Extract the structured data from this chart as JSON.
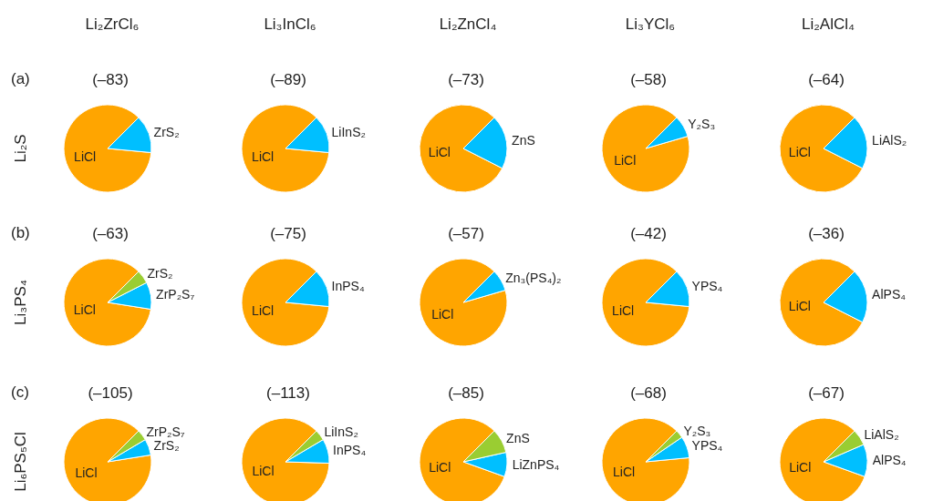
{
  "chart_data": [
    {
      "type": "pie",
      "title": "(–83)",
      "annotations": [
        "Li₂ZrCl₆",
        "(a)"
      ],
      "ylabel": "Li₂S",
      "categories": [
        "LiCl",
        "ZrS₂"
      ],
      "values": [
        86,
        14
      ],
      "colors": [
        "#ffa500",
        "#00bfff"
      ]
    },
    {
      "type": "pie",
      "title": "(–89)",
      "annotations": [
        "Li₃InCl₆"
      ],
      "categories": [
        "LiCl",
        "LiInS₂"
      ],
      "values": [
        86,
        14
      ],
      "colors": [
        "#ffa500",
        "#00bfff"
      ]
    },
    {
      "type": "pie",
      "title": "(–73)",
      "annotations": [
        "Li₂ZnCl₄"
      ],
      "categories": [
        "LiCl",
        "ZnS"
      ],
      "values": [
        80,
        20
      ],
      "colors": [
        "#ffa500",
        "#00bfff"
      ]
    },
    {
      "type": "pie",
      "title": "(–58)",
      "annotations": [
        "Li₃YCl₆"
      ],
      "categories": [
        "LiCl",
        "Y₂S₃"
      ],
      "values": [
        92,
        8
      ],
      "colors": [
        "#ffa500",
        "#00bfff"
      ]
    },
    {
      "type": "pie",
      "title": "(–64)",
      "annotations": [
        "Li₂AlCl₄"
      ],
      "categories": [
        "LiCl",
        "LiAlS₂"
      ],
      "values": [
        80,
        20
      ],
      "colors": [
        "#ffa500",
        "#00bfff"
      ]
    },
    {
      "type": "pie",
      "title": "(–63)",
      "annotations": [
        "(b)"
      ],
      "ylabel": "Li₃PS₄",
      "categories": [
        "LiCl",
        "ZrP₂S₇",
        "ZrS₂"
      ],
      "values": [
        85,
        10,
        5
      ],
      "colors": [
        "#ffa500",
        "#00bfff",
        "#9acd32"
      ]
    },
    {
      "type": "pie",
      "title": "(–75)",
      "categories": [
        "LiCl",
        "InPS₄"
      ],
      "values": [
        86,
        14
      ],
      "colors": [
        "#ffa500",
        "#00bfff"
      ]
    },
    {
      "type": "pie",
      "title": "(–57)",
      "categories": [
        "LiCl",
        "Zn₃(PS₄)₂"
      ],
      "values": [
        92,
        8
      ],
      "colors": [
        "#ffa500",
        "#00bfff"
      ]
    },
    {
      "type": "pie",
      "title": "(–42)",
      "categories": [
        "LiCl",
        "YPS₄"
      ],
      "values": [
        86,
        14
      ],
      "colors": [
        "#ffa500",
        "#00bfff"
      ]
    },
    {
      "type": "pie",
      "title": "(–36)",
      "categories": [
        "LiCl",
        "AlPS₄"
      ],
      "values": [
        80,
        20
      ],
      "colors": [
        "#ffa500",
        "#00bfff"
      ]
    },
    {
      "type": "pie",
      "title": "(–105)",
      "annotations": [
        "(c)"
      ],
      "ylabel": "Li₆PS₅Cl",
      "categories": [
        "LiCl",
        "ZrS₂",
        "ZrP₂S₇"
      ],
      "values": [
        90,
        6,
        4
      ],
      "colors": [
        "#ffa500",
        "#00bfff",
        "#9acd32"
      ]
    },
    {
      "type": "pie",
      "title": "(–113)",
      "categories": [
        "LiCl",
        "InPS₄",
        "LiInS₂"
      ],
      "values": [
        87,
        9,
        4
      ],
      "colors": [
        "#ffa500",
        "#00bfff",
        "#9acd32"
      ]
    },
    {
      "type": "pie",
      "title": "(–85)",
      "categories": [
        "LiCl",
        "LiZnPS₄",
        "ZnS"
      ],
      "values": [
        82,
        9,
        9
      ],
      "colors": [
        "#ffa500",
        "#00bfff",
        "#9acd32"
      ]
    },
    {
      "type": "pie",
      "title": "(–68)",
      "categories": [
        "LiCl",
        "YPS₄",
        "Y₂S₃"
      ],
      "values": [
        89,
        8,
        3
      ],
      "colors": [
        "#ffa500",
        "#00bfff",
        "#9acd32"
      ]
    },
    {
      "type": "pie",
      "title": "(–67)",
      "categories": [
        "LiCl",
        "AlPS₄",
        "LiAlS₂"
      ],
      "values": [
        82,
        12,
        6
      ],
      "colors": [
        "#ffa500",
        "#00bfff",
        "#9acd32"
      ]
    }
  ]
}
